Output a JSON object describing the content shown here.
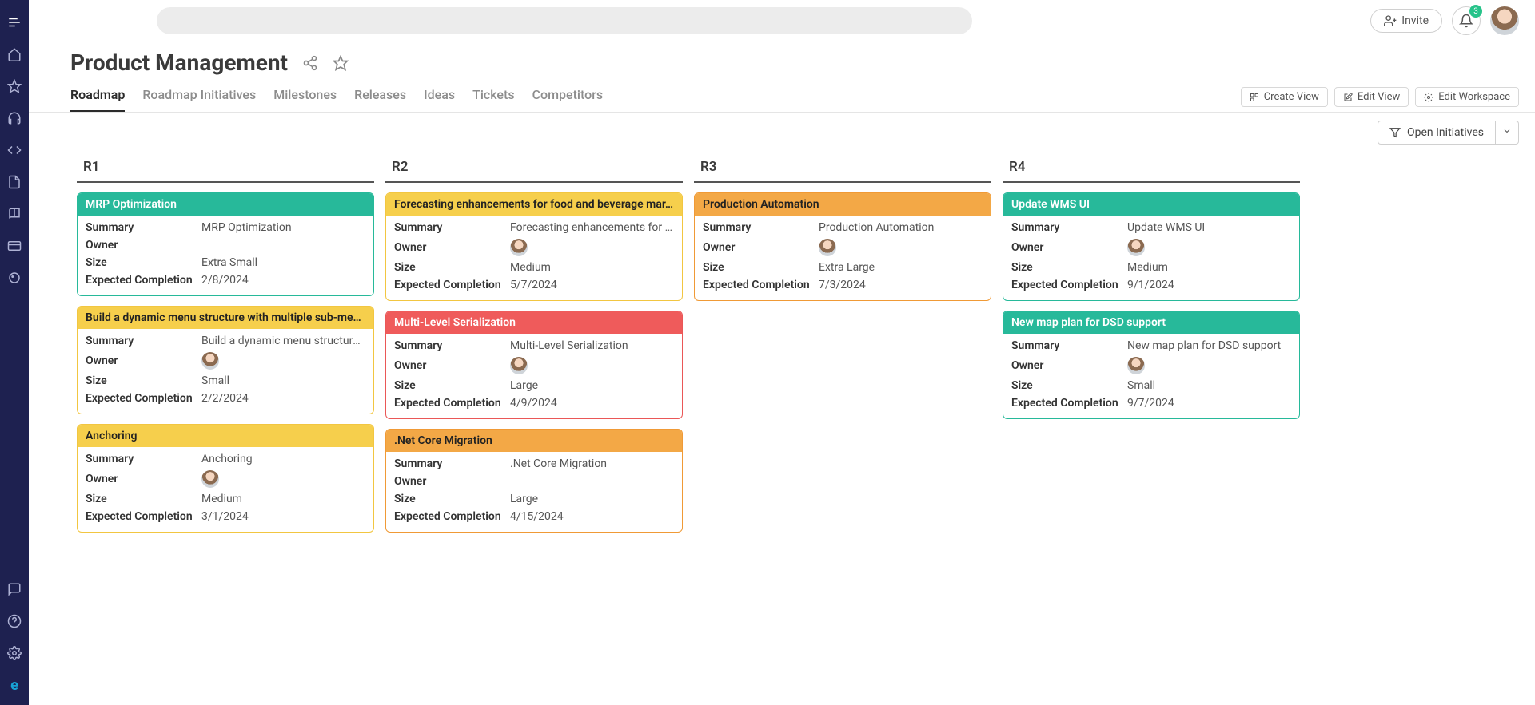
{
  "header": {
    "page_title": "Product Management",
    "invite_label": "Invite",
    "badge_count": "3"
  },
  "tabs": [
    {
      "label": "Roadmap",
      "active": true
    },
    {
      "label": "Roadmap Initiatives",
      "active": false
    },
    {
      "label": "Milestones",
      "active": false
    },
    {
      "label": "Releases",
      "active": false
    },
    {
      "label": "Ideas",
      "active": false
    },
    {
      "label": "Tickets",
      "active": false
    },
    {
      "label": "Competitors",
      "active": false
    }
  ],
  "view_actions": {
    "create": "Create View",
    "edit": "Edit View",
    "workspace": "Edit Workspace"
  },
  "filter_label": "Open Initiatives",
  "field_labels": {
    "summary": "Summary",
    "owner": "Owner",
    "size": "Size",
    "expected": "Expected Completion"
  },
  "colors": {
    "teal": "#27b99a",
    "yellow": "#f6cf4c",
    "orange": "#f3a846",
    "red": "#ef5b5b",
    "sidebar": "#1e2150"
  },
  "columns": [
    {
      "name": "R1",
      "cards": [
        {
          "color": "teal",
          "title": "MRP Optimization",
          "summary": "MRP Optimization",
          "owner": false,
          "size": "Extra Small",
          "expected": "2/8/2024"
        },
        {
          "color": "yellow",
          "title": "Build a dynamic menu structure with multiple sub-men…",
          "summary": "Build a dynamic menu structure …",
          "owner": true,
          "size": "Small",
          "expected": "2/2/2024"
        },
        {
          "color": "yellow",
          "title": "Anchoring",
          "summary": "Anchoring",
          "owner": true,
          "size": "Medium",
          "expected": "3/1/2024"
        }
      ]
    },
    {
      "name": "R2",
      "cards": [
        {
          "color": "yellow",
          "title": "Forecasting enhancements for food and beverage mar…",
          "summary": "Forecasting enhancements for f…",
          "owner": true,
          "size": "Medium",
          "expected": "5/7/2024"
        },
        {
          "color": "red",
          "title": "Multi-Level Serialization",
          "summary": "Multi-Level Serialization",
          "owner": true,
          "size": "Large",
          "expected": "4/9/2024"
        },
        {
          "color": "orange",
          "title": ".Net Core Migration",
          "summary": ".Net Core Migration",
          "owner": false,
          "size": "Large",
          "expected": "4/15/2024"
        }
      ]
    },
    {
      "name": "R3",
      "cards": [
        {
          "color": "orange",
          "title": "Production Automation",
          "summary": "Production Automation",
          "owner": true,
          "size": "Extra Large",
          "expected": "7/3/2024"
        }
      ]
    },
    {
      "name": "R4",
      "cards": [
        {
          "color": "teal",
          "title": "Update WMS UI",
          "summary": "Update WMS UI",
          "owner": true,
          "size": "Medium",
          "expected": "9/1/2024"
        },
        {
          "color": "teal",
          "title": "New map plan for DSD support",
          "summary": "New map plan for DSD support",
          "owner": true,
          "size": "Small",
          "expected": "9/7/2024"
        }
      ]
    }
  ]
}
